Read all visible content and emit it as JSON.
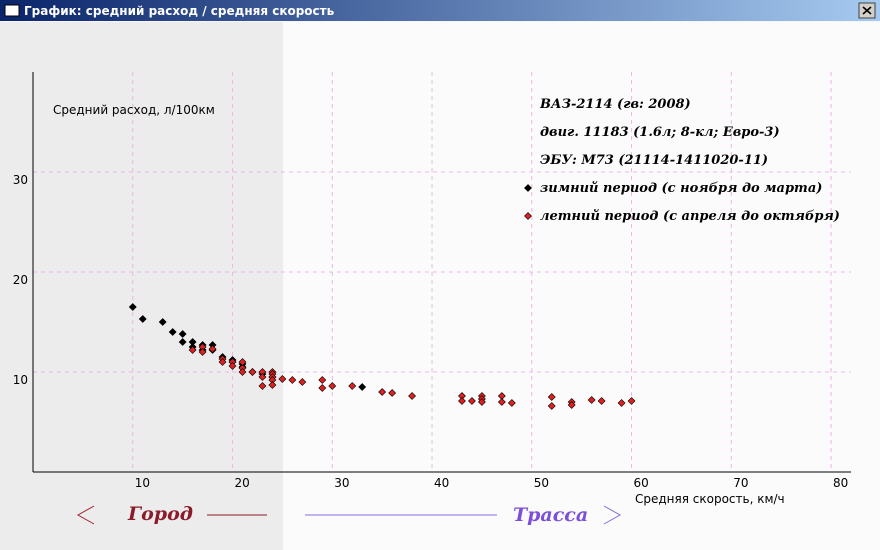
{
  "window": {
    "title": "График: средний расход / средняя скорость"
  },
  "chart_data": {
    "type": "scatter",
    "y_label": "Средний расход, л/100км",
    "x_label": "Средняя скорость, км/ч",
    "annotations": [
      "ВАЗ-2114 (гв: 2008)",
      "двиг. 11183 (1.6л; 8-кл; Евро-3)",
      "ЭБУ: M73 (21114-1411020-11)"
    ],
    "zones": [
      "Город",
      "Трасса"
    ],
    "xlim": [
      0,
      82
    ],
    "ylim": [
      0,
      40
    ],
    "xticks": [
      10,
      20,
      30,
      40,
      50,
      60,
      70,
      80
    ],
    "yticks": [
      10,
      20,
      30
    ],
    "grid": true,
    "series": [
      {
        "name": "зимний период (с ноября до марта)",
        "color": "#000000",
        "x": [
          10,
          11,
          13,
          14,
          15,
          15,
          16,
          16,
          17,
          17,
          18,
          18,
          19,
          20,
          20,
          21,
          21,
          22,
          23,
          24,
          33
        ],
        "values": [
          16.5,
          15.3,
          15,
          14,
          13.8,
          13,
          13,
          12.5,
          12.7,
          12.2,
          12.7,
          12.2,
          11.5,
          11.2,
          11,
          10.8,
          10.5,
          10,
          9.8,
          9.5,
          8.5
        ]
      },
      {
        "name": "летний период (с апреля до октября)",
        "color": "#e02020",
        "x": [
          16,
          17,
          17,
          18,
          19,
          19,
          20,
          20,
          21,
          21,
          21,
          22,
          23,
          23,
          23,
          24,
          24,
          24,
          24,
          24,
          25,
          26,
          27,
          29,
          29,
          30,
          32,
          35,
          36,
          38,
          43,
          43,
          44,
          45,
          45,
          45,
          47,
          47,
          48,
          52,
          52,
          54,
          54,
          56,
          57,
          59,
          60
        ],
        "values": [
          12.2,
          12.5,
          12,
          12.3,
          11.3,
          11,
          11,
          10.6,
          10.4,
          10,
          11,
          10,
          10,
          9.5,
          8.6,
          10,
          9.8,
          9.5,
          9.2,
          8.7,
          9.3,
          9.2,
          9,
          9.2,
          8.4,
          8.6,
          8.6,
          8,
          7.9,
          7.6,
          7.6,
          7.1,
          7.1,
          7.6,
          7.3,
          7,
          7.6,
          7,
          6.9,
          7.5,
          6.6,
          7,
          6.7,
          7.2,
          7.1,
          6.9,
          7.1
        ]
      }
    ]
  }
}
